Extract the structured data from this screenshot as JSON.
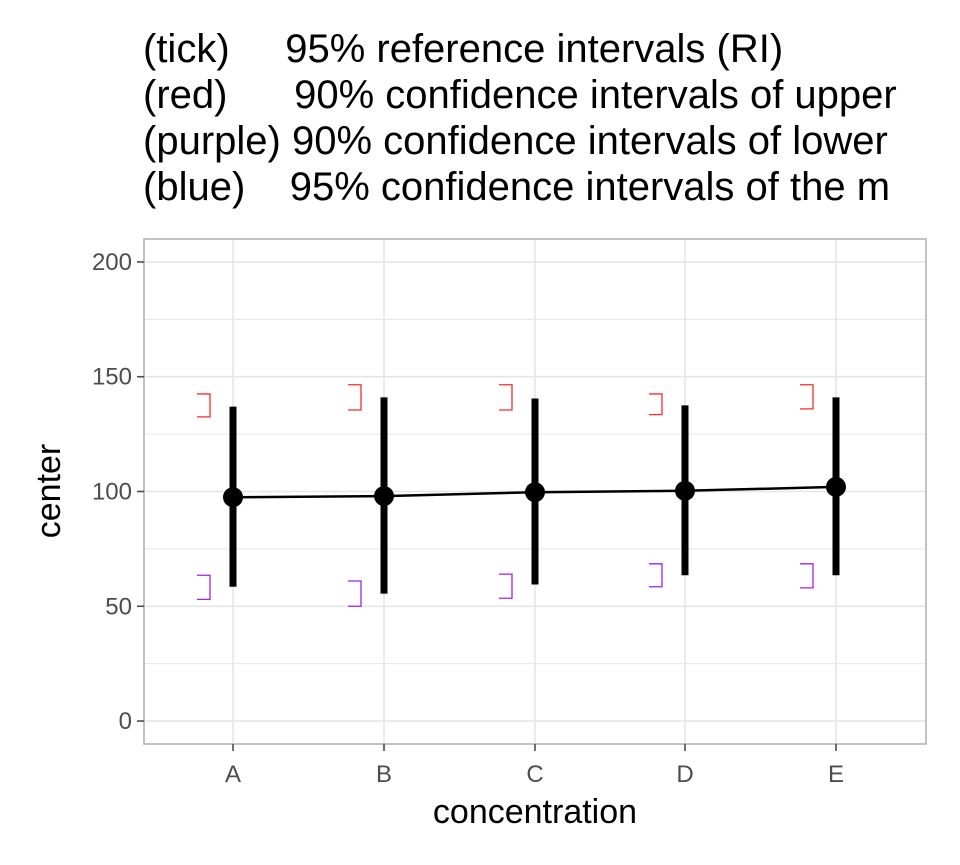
{
  "title_lines": [
    "(tick)     95% reference intervals (RI)",
    "(red)      90% confidence intervals of upper",
    "(purple) 90% confidence intervals of lower",
    "(blue)    95% confidence intervals of the m"
  ],
  "chart_data": {
    "type": "line",
    "xlabel": "concentration",
    "ylabel": "center",
    "categories": [
      "A",
      "B",
      "C",
      "D",
      "E"
    ],
    "ylim": [
      -10,
      210
    ],
    "yticks": [
      0,
      50,
      100,
      150,
      200
    ],
    "grid": true,
    "center": [
      97.5,
      98,
      99.7,
      100.3,
      102
    ],
    "reference_interval": {
      "lower": [
        58.5,
        55.5,
        59.5,
        63.5,
        63.5
      ],
      "upper": [
        137,
        141,
        140.5,
        137.5,
        141
      ]
    },
    "upper_limit_ci": {
      "low": [
        132.5,
        135.5,
        135.5,
        133.5,
        136
      ],
      "high": [
        142.5,
        146.5,
        146.5,
        142.5,
        146.5
      ]
    },
    "lower_limit_ci": {
      "low": [
        53,
        50,
        53.5,
        58.5,
        58
      ],
      "high": [
        63.5,
        61,
        64,
        68.5,
        68.5
      ]
    },
    "colors": {
      "center": "#000000",
      "upper_ci": "#ff2a2a",
      "lower_ci": "#a020f0",
      "grid": "#e6e6e6",
      "panel_border": "#b3b3b3",
      "tick_text": "#4d4d4d"
    }
  }
}
